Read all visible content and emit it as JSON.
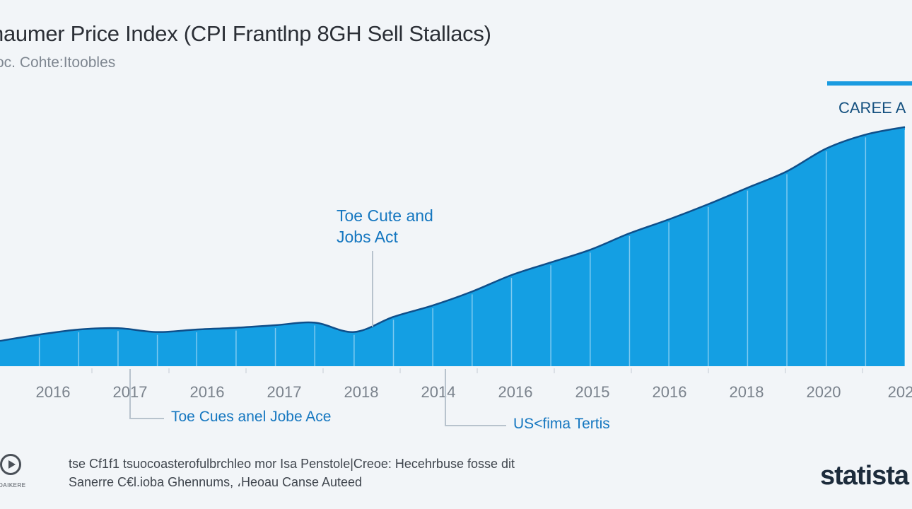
{
  "header": {
    "title": "haumer Price Index (CPI Frantlnp 8GH Sell Stallacs)",
    "subtitle": "oc. Cohte:Itoobles"
  },
  "legend": {
    "label": "CAREE A",
    "color": "#1a9be0"
  },
  "annotations": {
    "main_line1": "Toe Cute and",
    "main_line2": "Jobs Act",
    "lower_left": "Toe Cues anel Jobe Ace",
    "lower_right": "US<fima Tertis"
  },
  "footer": {
    "source_icon": "play-circle-icon",
    "source_icon_text": "DAIKERE",
    "note_line1": "tse Cf1f1 tsuocoasterofulbrchleo mor Isa Penstole|Creoe: Hecehrbuse fosse dit",
    "note_line2": "Sanerre C€l.ioba Ghennums, ،Heoau Canse Auteed",
    "brand": "statista"
  },
  "colors": {
    "area_fill": "#149fe3",
    "area_line": "#0f4f8a",
    "accent_text": "#1577c0",
    "background": "#f2f5f8"
  },
  "chart_data": {
    "type": "area",
    "title": "haumer Price Index (CPI Frantlnp 8GH Sell Stallacs)",
    "subtitle": "oc. Cohte:Itoobles",
    "x_tick_labels": [
      "2016",
      "2017",
      "2016",
      "2017",
      "2018",
      "2014",
      "2016",
      "2015",
      "2016",
      "2018",
      "2020",
      "202"
    ],
    "series": [
      {
        "name": "CAREE A",
        "x": [
          0,
          0.5,
          1,
          1.5,
          2,
          2.5,
          3,
          3.5,
          4,
          4.5,
          5,
          5.5,
          6,
          6.5,
          7,
          7.5,
          8,
          8.5,
          9,
          9.5,
          10,
          10.5,
          11,
          11.5
        ],
        "values": [
          1.0,
          1.25,
          1.45,
          1.5,
          1.35,
          1.45,
          1.52,
          1.62,
          1.72,
          1.35,
          1.95,
          2.4,
          2.95,
          3.6,
          4.1,
          4.6,
          5.25,
          5.8,
          6.4,
          7.05,
          7.7,
          8.6,
          9.15,
          9.45
        ]
      }
    ],
    "ylim": [
      0,
      10
    ],
    "grid": false,
    "legend_position": "top-right",
    "annotations": [
      {
        "x": 4.1,
        "text": "Toe Cute and Jobs Act"
      },
      {
        "x": 1.25,
        "text": "Toe Cues anel Jobe Ace"
      },
      {
        "x": 5.35,
        "text": "US<fima Tertis"
      }
    ]
  }
}
